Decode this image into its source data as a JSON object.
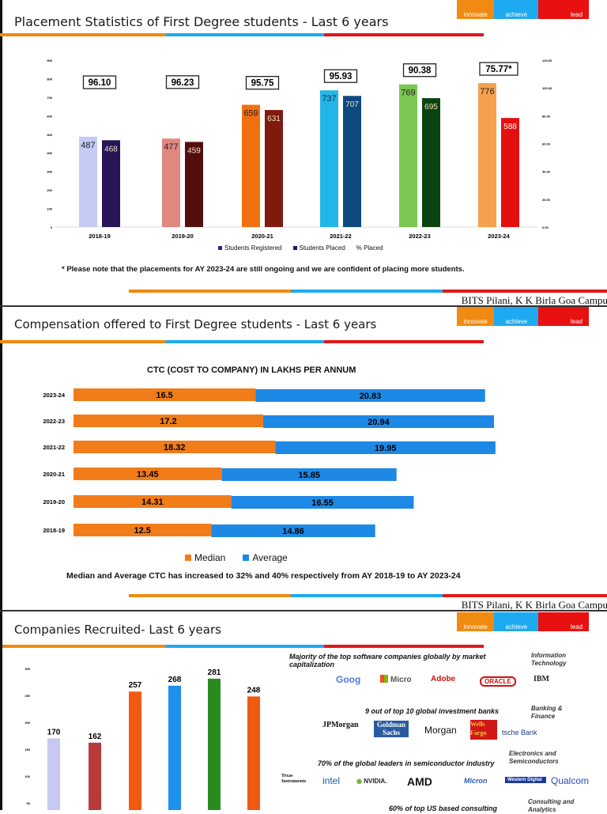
{
  "brand": {
    "innovate": "innovate",
    "achieve": "achieve",
    "lead": "lead",
    "campus": "BITS Pilani, K K Birla Goa Campus"
  },
  "slides": [
    {
      "title": "Placement Statistics of First Degree students - Last 6 years",
      "legend": [
        "Students Registered",
        "Students Placed",
        "% Placed"
      ],
      "note": "* Please note that the placements for AY 2023-24 are still ongoing and we are confident of placing more students."
    },
    {
      "title": "Compensation offered to First Degree students - Last 6 years",
      "chart_title": "CTC (COST TO COMPANY) IN LAKHS PER ANNUM",
      "legend": [
        "Median",
        "Average"
      ],
      "note": "Median and Average CTC has increased to 32% and 40% respectively from AY 2018-19 to AY 2023-24"
    },
    {
      "title": "Companies Recruited- Last 6 years",
      "panel": {
        "sections": [
          {
            "heading": "Majority of the top software companies globally by market capitalization",
            "category": "Information Technology",
            "logos": [
              "Goog",
              "Micro",
              "Adobe",
              "ORACLE",
              "IBM"
            ]
          },
          {
            "heading": "9 out of top 10 global investment banks",
            "category": "Banking & Finance",
            "logos": [
              "JPMorgan Chase",
              "Goldman Sachs",
              "Morgan",
              "Wells Fargo",
              "tsche Bank"
            ]
          },
          {
            "heading": "70% of the global leaders in semiconductor industry",
            "category": "Electronics and Semiconductors",
            "logos": [
              "Texas Instruments",
              "intel",
              "NVIDIA.",
              "AMD",
              "Micron",
              "Western Digital",
              "Qualcom"
            ]
          },
          {
            "heading": "60% of top US based consulting",
            "category": "Consulting and Analytics",
            "logos": []
          }
        ]
      }
    }
  ],
  "chart_data": [
    {
      "type": "bar",
      "categories": [
        "2018-19",
        "2019-20",
        "2020-21",
        "2021-22",
        "2022-23",
        "2023-24"
      ],
      "series": [
        {
          "name": "Students Registered",
          "values": [
            487,
            477,
            659,
            737,
            769,
            776
          ],
          "colors": [
            "#c4ccf4",
            "#e08880",
            "#f07010",
            "#22b6e6",
            "#7cc652",
            "#f6a04c"
          ]
        },
        {
          "name": "Students Placed",
          "values": [
            468,
            459,
            631,
            707,
            695,
            588
          ],
          "colors": [
            "#261656",
            "#520e0e",
            "#801a0e",
            "#0e4a7e",
            "#0a440e",
            "#e41010"
          ]
        },
        {
          "name": "% Placed",
          "values": [
            96.1,
            96.23,
            95.75,
            95.93,
            90.38,
            75.77
          ],
          "labels": [
            "96.10",
            "96.23",
            "95.75",
            "95.93",
            "90.38",
            "75.77*"
          ]
        }
      ],
      "ylim": [
        0,
        900
      ],
      "yticks": [
        0,
        100,
        200,
        300,
        400,
        500,
        600,
        700,
        800,
        900
      ],
      "y2lim": [
        0,
        120
      ],
      "y2ticks": [
        "0.00",
        "20.00",
        "40.00",
        "60.00",
        "80.00",
        "100.00",
        "120.00"
      ],
      "legend": "bottom"
    },
    {
      "type": "bar",
      "orientation": "horizontal",
      "stacked": true,
      "title": "CTC (COST TO COMPANY) IN LAKHS PER ANNUM",
      "categories": [
        "2023-24",
        "2022-23",
        "2021-22",
        "2020-21",
        "2019-20",
        "2018-19"
      ],
      "series": [
        {
          "name": "Median",
          "values": [
            16.5,
            17.2,
            18.32,
            13.45,
            14.31,
            12.5
          ],
          "labels": [
            "16.5",
            "17.2",
            "18.32",
            "13.45",
            "14.31",
            "12.5"
          ],
          "color": "#f07c1a"
        },
        {
          "name": "Average",
          "values": [
            20.83,
            20.94,
            19.95,
            15.85,
            16.55,
            14.86
          ],
          "labels": [
            "20.83",
            "20.94",
            "19.95",
            "15.85",
            "16.55",
            "14.86"
          ],
          "color": "#1e88e5"
        }
      ],
      "legend": "bottom"
    },
    {
      "type": "bar",
      "title": "Companies Recruited- Last 6 years",
      "values": [
        170,
        162,
        257,
        268,
        281,
        248
      ],
      "colors": [
        "#c8c8f4",
        "#b83a3a",
        "#f05a10",
        "#1e90f0",
        "#2a8a20",
        "#f05a10"
      ],
      "yticks": [
        50,
        100,
        150,
        200,
        250,
        300
      ]
    }
  ]
}
